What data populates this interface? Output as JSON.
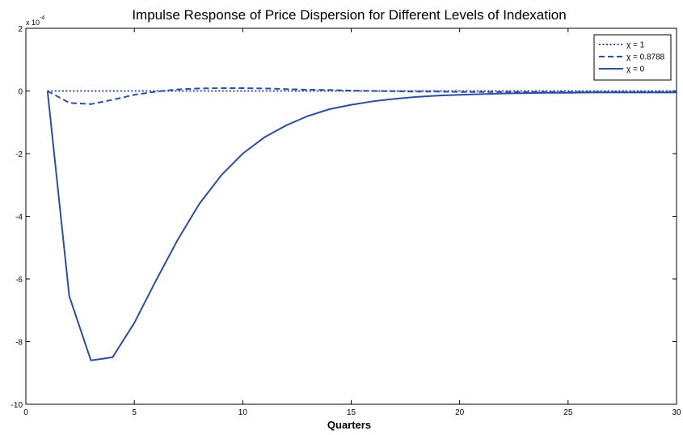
{
  "chart_data": {
    "type": "line",
    "title": "Impulse Response of Price Dispersion for Different Levels of Indexation",
    "xlabel": "Quarters",
    "ylabel": "",
    "y_scale_label": "x 10",
    "y_scale_exponent": "-4",
    "xlim": [
      0,
      30
    ],
    "ylim": [
      -10,
      2
    ],
    "xticks": [
      0,
      5,
      10,
      15,
      20,
      25,
      30
    ],
    "yticks": [
      2,
      0,
      -2,
      -4,
      -6,
      -8,
      -10
    ],
    "grid": false,
    "legend_position": "top-right",
    "line_color": "#2b4ea2",
    "x": [
      1,
      2,
      3,
      4,
      5,
      6,
      7,
      8,
      9,
      10,
      11,
      12,
      13,
      14,
      15,
      16,
      17,
      18,
      19,
      20,
      21,
      22,
      23,
      24,
      25,
      26,
      27,
      28,
      29,
      30
    ],
    "series": [
      {
        "name": "χ = 1",
        "style": "dotted",
        "values": [
          0,
          0,
          0,
          0,
          0,
          0,
          0,
          0,
          0,
          0,
          0,
          0,
          0,
          0,
          0,
          0,
          0,
          0,
          0,
          0,
          0,
          0,
          0,
          0,
          0,
          0,
          0,
          0,
          0,
          0
        ]
      },
      {
        "name": "χ = 0.8788",
        "style": "dashed",
        "values": [
          0,
          -0.38,
          -0.42,
          -0.28,
          -0.12,
          -0.02,
          0.05,
          0.08,
          0.09,
          0.09,
          0.08,
          0.06,
          0.04,
          0.03,
          0.01,
          0,
          -0.01,
          -0.02,
          -0.02,
          -0.03,
          -0.03,
          -0.03,
          -0.03,
          -0.03,
          -0.03,
          -0.03,
          -0.03,
          -0.03,
          -0.03,
          -0.03
        ]
      },
      {
        "name": "χ = 0",
        "style": "solid",
        "values": [
          0,
          -6.55,
          -8.6,
          -8.5,
          -7.4,
          -6.05,
          -4.75,
          -3.6,
          -2.7,
          -2.0,
          -1.48,
          -1.1,
          -0.8,
          -0.58,
          -0.44,
          -0.33,
          -0.25,
          -0.19,
          -0.15,
          -0.12,
          -0.1,
          -0.08,
          -0.07,
          -0.06,
          -0.06,
          -0.05,
          -0.05,
          -0.05,
          -0.05,
          -0.05
        ]
      }
    ]
  }
}
